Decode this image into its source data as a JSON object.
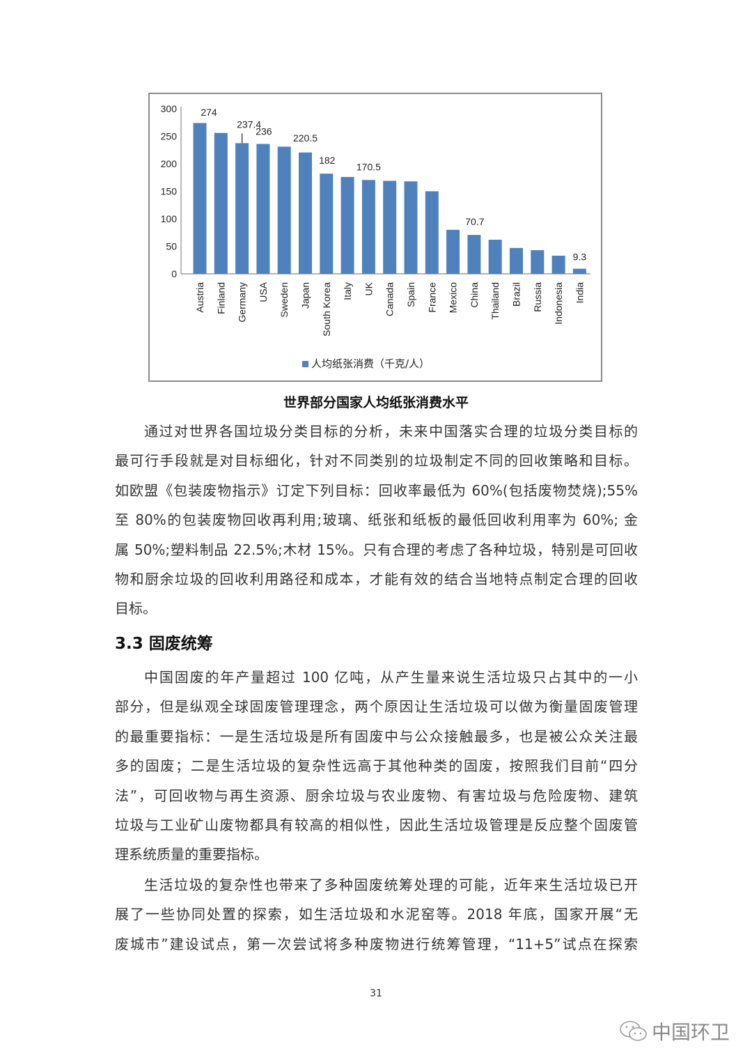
{
  "chart_data": {
    "type": "bar",
    "categories": [
      "Austria",
      "Finland",
      "Germany",
      "USA",
      "Sweden",
      "Japan",
      "South Korea",
      "Italy",
      "UK",
      "Canada",
      "Spain",
      "France",
      "Mexico",
      "China",
      "Thailand",
      "Brazil",
      "Russia",
      "Indonesia",
      "India"
    ],
    "series": [
      {
        "name": "人均纸张消费（千克/人）",
        "values": [
          274,
          256,
          237.4,
          236,
          231,
          220.5,
          182,
          176,
          170.5,
          169,
          168,
          150,
          80,
          70.7,
          62,
          47,
          43,
          33,
          9.3
        ],
        "color": "#4f81bd"
      }
    ],
    "data_labels": {
      "0": "274",
      "2": "237.4",
      "3": "236",
      "5": "220.5",
      "6": "182",
      "8": "170.5",
      "13": "70.7",
      "18": "9.3"
    },
    "yticks": [
      "0",
      "50",
      "100",
      "150",
      "200",
      "250",
      "300"
    ],
    "ylim": [
      0,
      300
    ],
    "grid": false,
    "legend": "bottom"
  },
  "caption": "世界部分国家人均纸张消费水平",
  "paragraphs1": [
    "通过对世界各国垃圾分类目标的分析，未来中国落实合理的垃圾分类目标的",
    "最可行手段就是对目标细化，针对不同类别的垃圾制定不同的回收策略和目标。",
    "如欧盟《包装废物指示》订定下列目标：回收率最低为 60%(包括废物焚烧);55%",
    "至 80%的包装废物回收再利用;玻璃、纸张和纸板的最低回收利用率为 60%; 金",
    "属 50%;塑料制品 22.5%;木材 15%。只有合理的考虑了各种垃圾，特别是可回收",
    "物和厨余垃圾的回收利用路径和成本，才能有效的结合当地特点制定合理的回收",
    "目标。"
  ],
  "heading": "3.3 固废统筹",
  "paragraphs2": [
    "中国固废的年产量超过 100 亿吨，从产生量来说生活垃圾只占其中的一小",
    "部分，但是纵观全球固废管理理念，两个原因让生活垃圾可以做为衡量固废管理",
    "的最重要指标：一是生活垃圾是所有固废中与公众接触最多，也是被公众关注最",
    "多的固废；二是生活垃圾的复杂性远高于其他种类的固废，按照我们目前“四分",
    "法”，可回收物与再生资源、厨余垃圾与农业废物、有害垃圾与危险废物、建筑",
    "垃圾与工业矿山废物都具有较高的相似性，因此生活垃圾管理是反应整个固废管",
    "理系统质量的重要指标。"
  ],
  "paragraphs3": [
    "生活垃圾的复杂性也带来了多种固废统筹处理的可能，近年来生活垃圾已开",
    "展了一些协同处置的探索，如生活垃圾和水泥窑等。2018 年底，国家开展“无",
    "废城市”建设试点，第一次尝试将多种废物进行统筹管理，“11+5”试点在探索"
  ],
  "page_number": "31",
  "watermark": {
    "text": "中国环卫",
    "icon": "wechat-icon"
  }
}
